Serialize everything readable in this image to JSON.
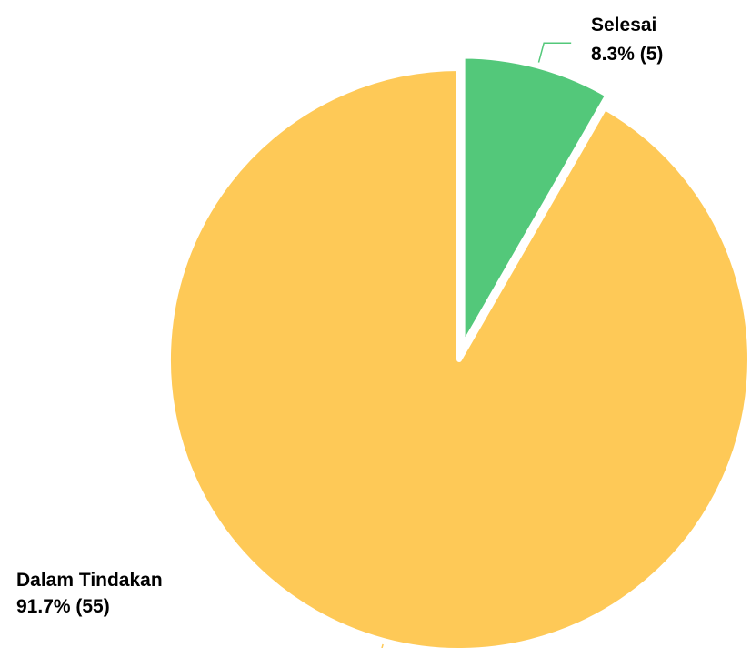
{
  "chart_data": {
    "type": "pie",
    "start_angle_deg": 0,
    "direction": "clockwise",
    "exploded_slice": "Selesai",
    "slices": [
      {
        "name": "Selesai",
        "value": 5,
        "percent": 8.3,
        "color": "#53c87a",
        "label_name": "Selesai",
        "label_value": "8.3% (5)"
      },
      {
        "name": "Dalam Tindakan",
        "value": 55,
        "percent": 91.7,
        "color": "#fec957",
        "label_name": "Dalam Tindakan",
        "label_value": "91.7% (55)"
      }
    ]
  }
}
